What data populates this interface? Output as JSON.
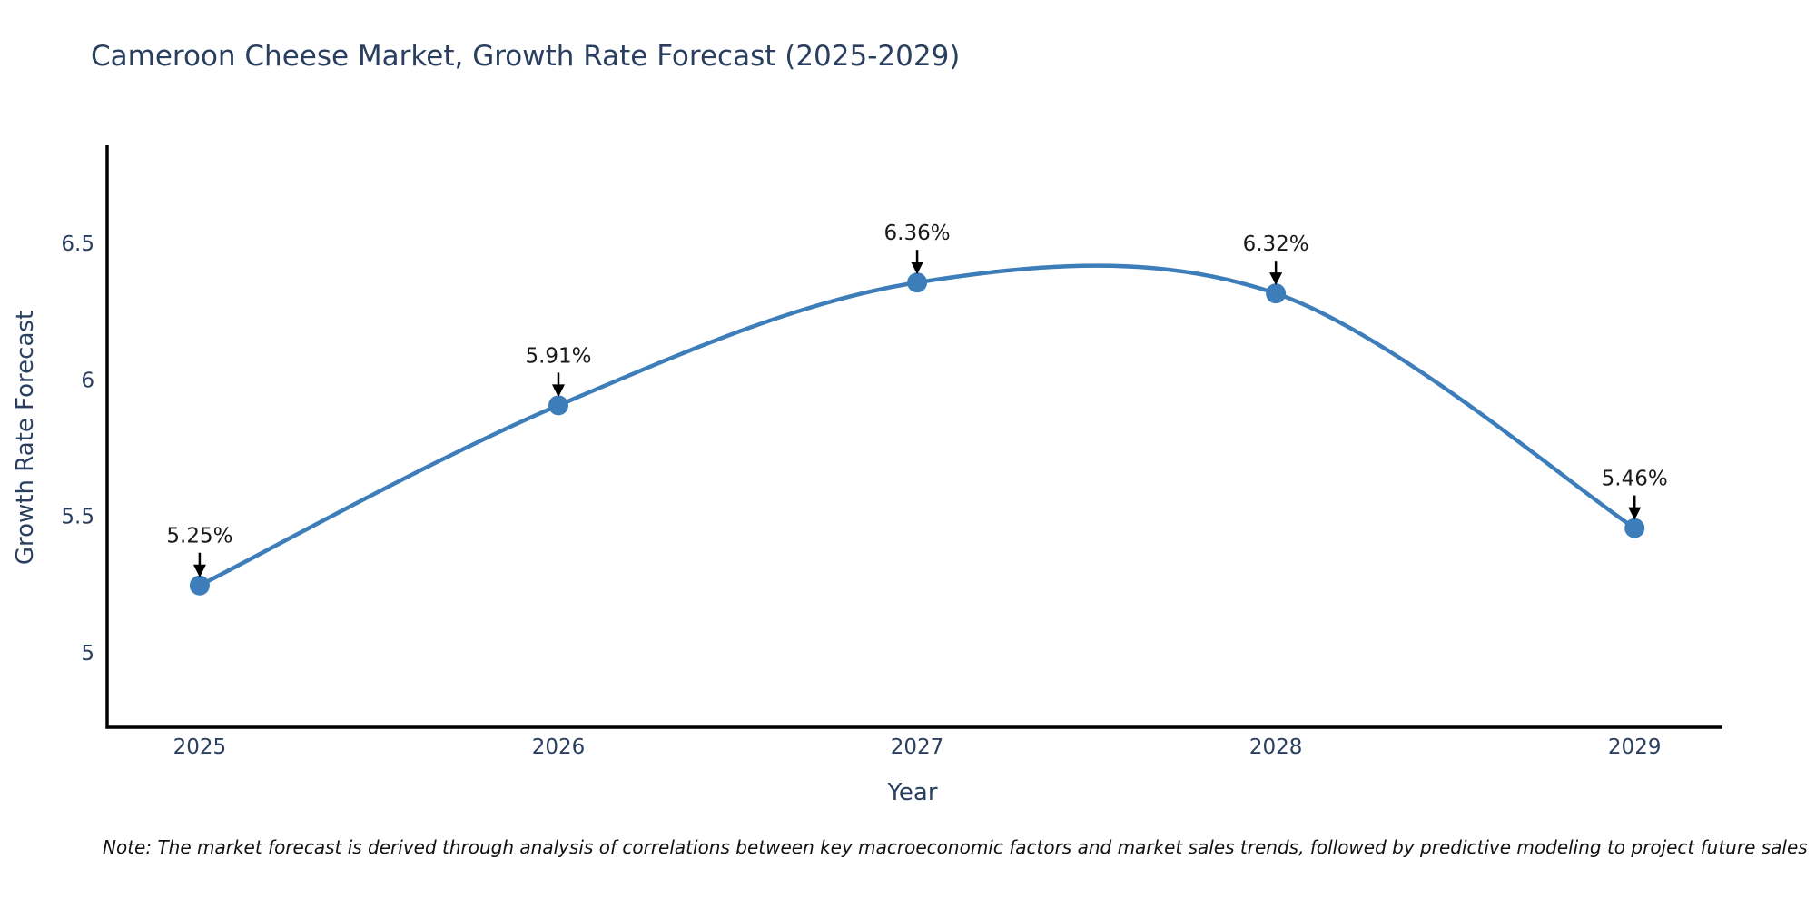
{
  "title": "Cameroon Cheese Market, Growth Rate Forecast (2025-2029)",
  "note": "Note: The market forecast is derived through analysis of correlations between key macroeconomic factors and market sales trends, followed by predictive modeling to project future sales",
  "chart_data": {
    "type": "line",
    "title": "Cameroon Cheese Market, Growth Rate Forecast (2025-2029)",
    "xlabel": "Year",
    "ylabel": "Growth Rate Forecast",
    "x": [
      2025,
      2026,
      2027,
      2028,
      2029
    ],
    "values": [
      5.25,
      5.91,
      6.36,
      6.32,
      5.46
    ],
    "point_labels": [
      "5.25%",
      "5.91%",
      "6.36%",
      "6.32%",
      "5.46%"
    ],
    "x_tick_labels": [
      "2025",
      "2026",
      "2027",
      "2028",
      "2029"
    ],
    "y_ticks": [
      5,
      5.5,
      6,
      6.5
    ],
    "y_tick_labels": [
      "5",
      "5.5",
      "6",
      "6.5"
    ],
    "xlim": [
      2024.742,
      2029.245
    ],
    "ylim": [
      4.73,
      6.863
    ],
    "line_shape": "spline",
    "grid": false,
    "legend": "none",
    "colors": {
      "line": "#3d7eba",
      "marker": "#3d7eba",
      "axis": "#000000",
      "annotation_text": "#1a1a1a",
      "annotation_arrow": "#000000",
      "title_text": "#2a3f5f",
      "tick_text": "#2a3f5f",
      "background": "#ffffff"
    }
  }
}
